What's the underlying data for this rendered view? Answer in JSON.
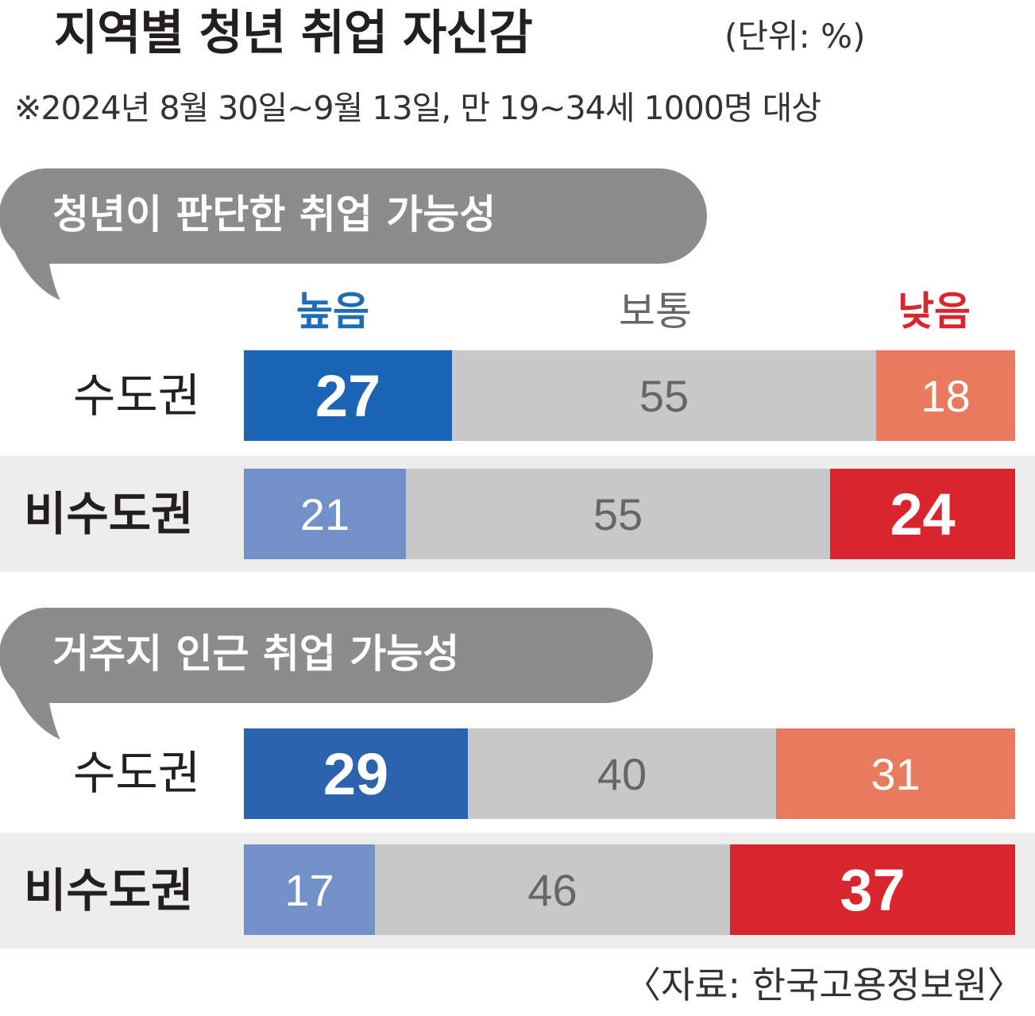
{
  "title": "지역별 청년 취업 자신감",
  "unit": "(단위: %)",
  "note": "※2024년 8월 30일~9월 13일, 만 19~34세 1000명 대상",
  "source": "〈자료: 한국고용정보원〉",
  "legend": {
    "high": "높음",
    "mid": "보통",
    "low": "낮음"
  },
  "colors": {
    "bubble": "#8c8c8c",
    "row_highlight": "#ededed",
    "middle": "#c8c8c8",
    "sudo_high": "#1b65b4",
    "sudo_high_2": "#2a62ae",
    "nonsudo_high": "#7291c8",
    "sudo_low": "#e87a5d",
    "nonsudo_low": "#d9262e",
    "legend_high": "#1e6cb3",
    "legend_mid": "#666666",
    "legend_low": "#d9262e"
  },
  "chart_data": [
    {
      "type": "bar",
      "stacked": true,
      "orientation": "horizontal",
      "title": "청년이 판단한 취업 가능성",
      "categories": [
        "수도권",
        "비수도권"
      ],
      "series": [
        {
          "name": "높음",
          "values": [
            27,
            21
          ]
        },
        {
          "name": "보통",
          "values": [
            55,
            55
          ]
        },
        {
          "name": "낮음",
          "values": [
            18,
            24
          ]
        }
      ],
      "xlim": [
        0,
        100
      ]
    },
    {
      "type": "bar",
      "stacked": true,
      "orientation": "horizontal",
      "title": "거주지 인근 취업 가능성",
      "categories": [
        "수도권",
        "비수도권"
      ],
      "series": [
        {
          "name": "높음",
          "values": [
            29,
            17
          ]
        },
        {
          "name": "보통",
          "values": [
            40,
            46
          ]
        },
        {
          "name": "낮음",
          "values": [
            31,
            37
          ]
        }
      ],
      "xlim": [
        0,
        100
      ]
    }
  ]
}
